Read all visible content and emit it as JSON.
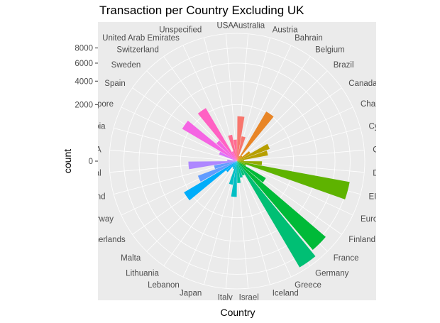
{
  "chart_data": {
    "type": "bar",
    "coord": "polar",
    "title": "Transaction per Country Excluding UK",
    "xlabel": "Country",
    "ylabel": "count",
    "ylim": [
      0,
      10200
    ],
    "yticks": [
      0,
      2000,
      4000,
      6000,
      8000
    ],
    "grid": true,
    "legend": "none",
    "categories": [
      "Australia",
      "Austria",
      "Bahrain",
      "Belgium",
      "Brazil",
      "Canada",
      "Channel Islands",
      "Cyprus",
      "Czech Republic",
      "Denmark",
      "EIRE",
      "European Community",
      "Finland",
      "France",
      "Germany",
      "Greece",
      "Iceland",
      "Israel",
      "Italy",
      "Japan",
      "Lebanon",
      "Lithuania",
      "Malta",
      "Netherlands",
      "Norway",
      "Poland",
      "Portugal",
      "RSA",
      "Saudi Arabia",
      "Singapore",
      "Spain",
      "Sweden",
      "Switzerland",
      "United Arab Emirates",
      "Unspecified",
      "USA"
    ],
    "values": [
      1260,
      400,
      20,
      2070,
      30,
      150,
      760,
      620,
      30,
      390,
      8200,
      60,
      700,
      8500,
      9500,
      150,
      180,
      300,
      800,
      360,
      45,
      35,
      130,
      2370,
      1090,
      340,
      1480,
      60,
      10,
      230,
      2530,
      460,
      2370,
      70,
      450,
      290
    ],
    "colors": [
      "#F8766D",
      "#E88526",
      "#D39200",
      "#B79F00",
      "#93AA00",
      "#5EB300",
      "#00BA38",
      "#00BF74",
      "#00C19F",
      "#00BFC4",
      "#00B9E3",
      "#00ADFA",
      "#619CFF",
      "#AE87FF",
      "#DB72FB",
      "#F564E3",
      "#FF61C3",
      "#FF6C91"
    ]
  }
}
